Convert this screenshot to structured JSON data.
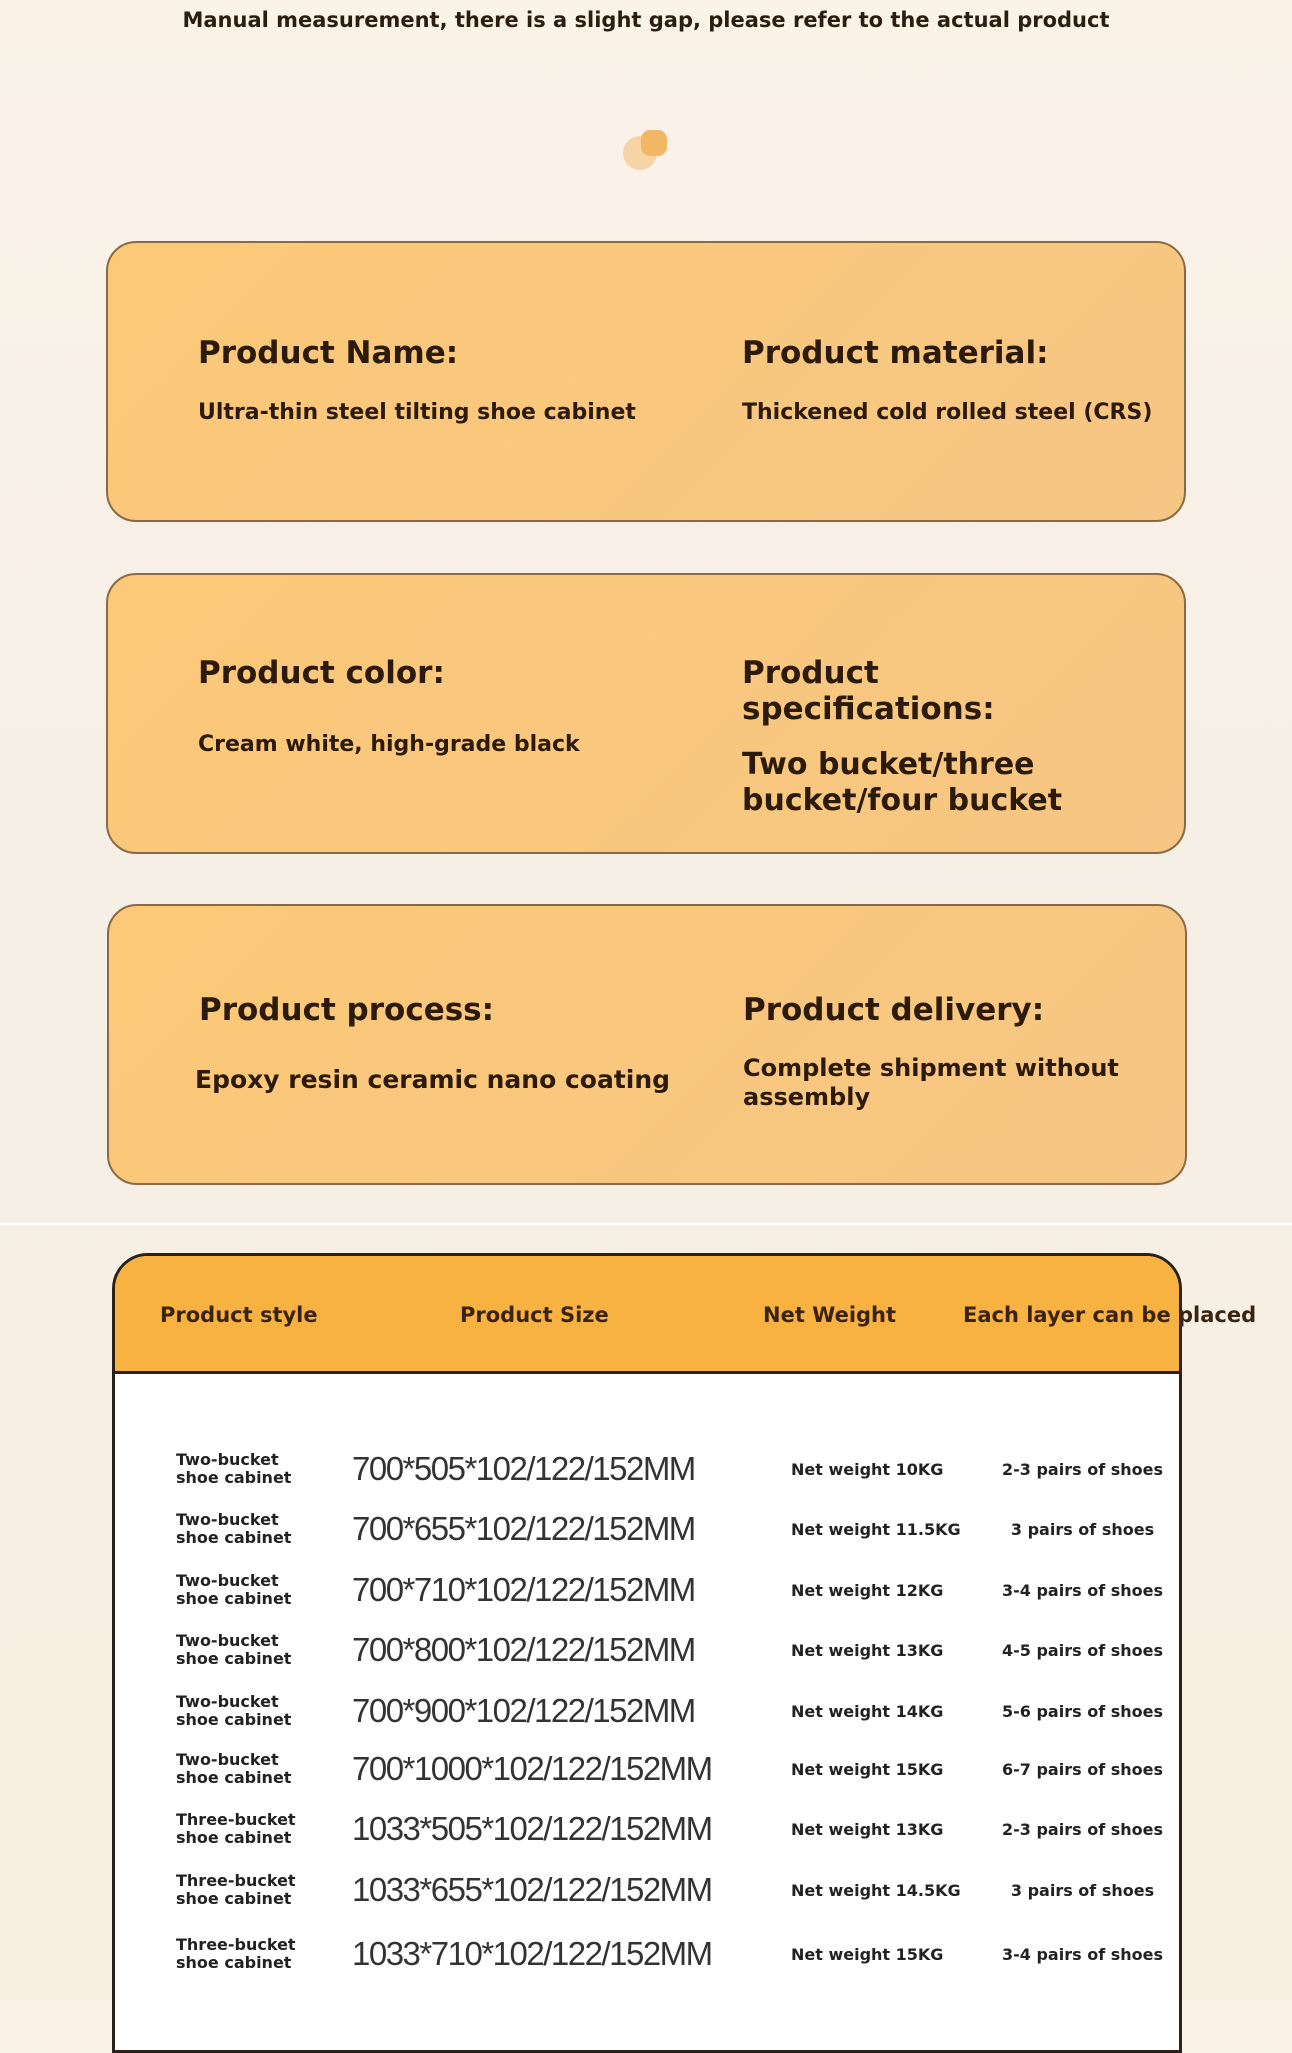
{
  "note": "Manual measurement, there is a slight gap, please refer to the actual product",
  "cards": [
    {
      "left": {
        "heading": "Product Name:",
        "value": "Ultra-thin steel tilting shoe cabinet"
      },
      "right": {
        "heading": "Product material:",
        "value": "Thickened cold rolled steel (CRS)"
      }
    },
    {
      "left": {
        "heading": "Product color:",
        "value": "Cream white, high-grade black"
      },
      "right": {
        "heading": "Product specifications:",
        "value": "Two bucket/three bucket/four bucket"
      }
    },
    {
      "left": {
        "heading": "Product process:",
        "value": "Epoxy resin ceramic nano coating"
      },
      "right": {
        "heading": "Product delivery:",
        "value": "Complete shipment without assembly"
      }
    }
  ],
  "table": {
    "headers": [
      "Product style",
      "Product Size",
      "Net Weight",
      "Each layer can be placed"
    ],
    "rows": [
      [
        "Two-bucket shoe cabinet",
        "700*505*102/122/152MM",
        "Net weight 10KG",
        "2-3 pairs of shoes"
      ],
      [
        "Two-bucket shoe cabinet",
        "700*655*102/122/152MM",
        "Net weight 11.5KG",
        "3 pairs of shoes"
      ],
      [
        "Two-bucket shoe cabinet",
        "700*710*102/122/152MM",
        "Net weight 12KG",
        "3-4 pairs of shoes"
      ],
      [
        "Two-bucket shoe cabinet",
        "700*800*102/122/152MM",
        "Net weight 13KG",
        "4-5 pairs of shoes"
      ],
      [
        "Two-bucket shoe cabinet",
        "700*900*102/122/152MM",
        "Net weight 14KG",
        "5-6 pairs of shoes"
      ],
      [
        "Two-bucket shoe cabinet",
        "700*1000*102/122/152MM",
        "Net weight 15KG",
        "6-7 pairs of shoes"
      ],
      [
        "Three-bucket shoe cabinet",
        "1033*505*102/122/152MM",
        "Net weight 13KG",
        "2-3 pairs of shoes"
      ],
      [
        "Three-bucket shoe cabinet",
        "1033*655*102/122/152MM",
        "Net weight 14.5KG",
        "3 pairs of shoes"
      ],
      [
        "Three-bucket shoe cabinet",
        "1033*710*102/122/152MM",
        "Net weight 15KG",
        "3-4 pairs of shoes"
      ]
    ]
  },
  "colors": {
    "card": "#fcc978",
    "header": "#f8b241",
    "border": "#2a2118"
  }
}
